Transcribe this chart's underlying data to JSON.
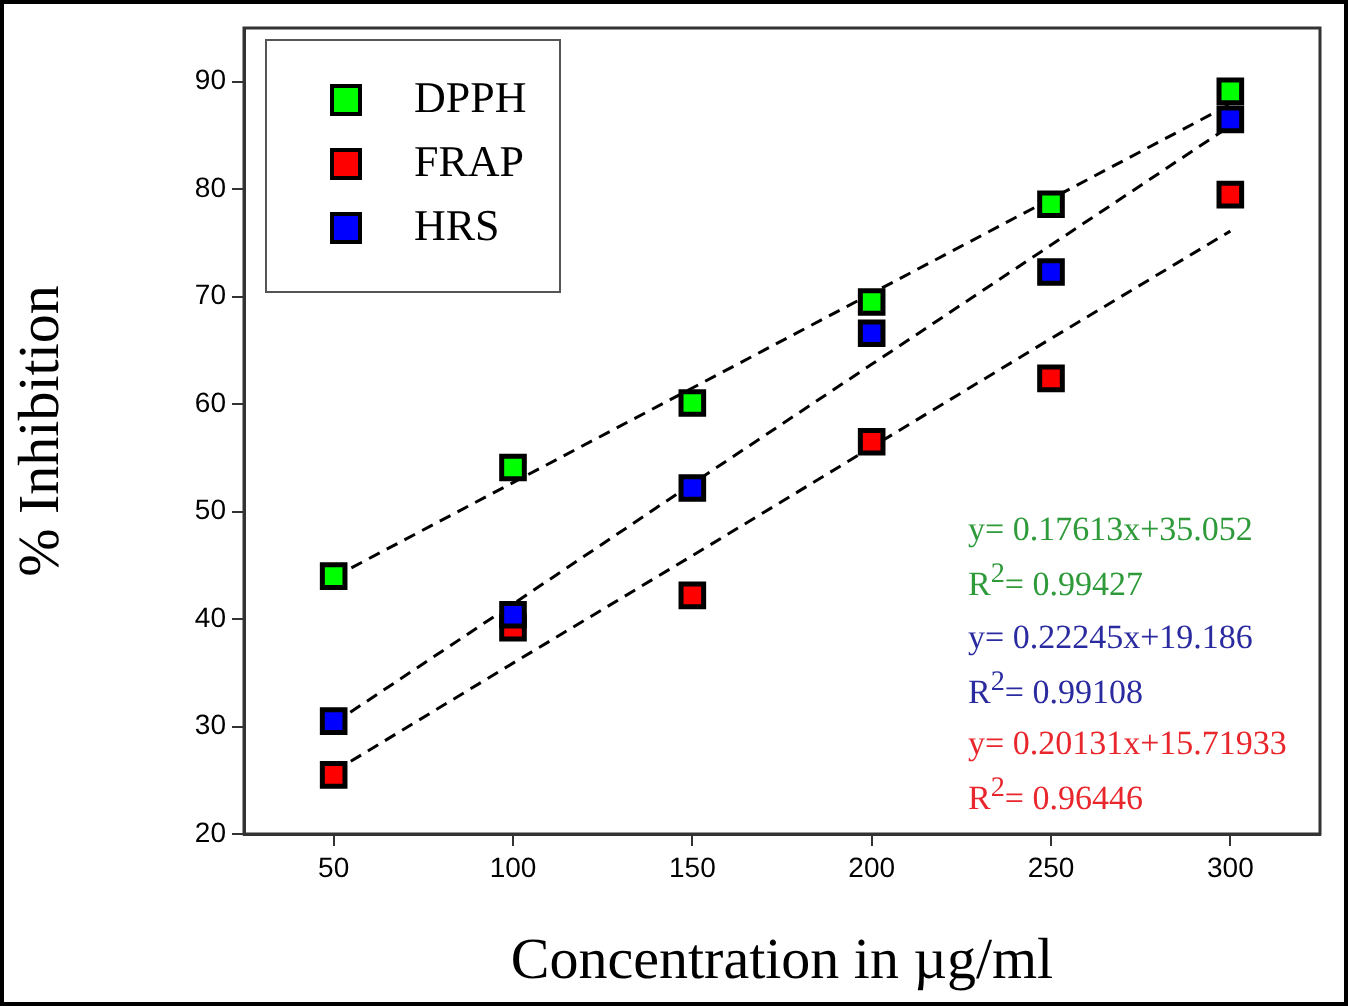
{
  "chart_data": {
    "type": "scatter",
    "xlabel": "Concentration in µg/ml",
    "ylabel": "% Inhibition",
    "x": [
      50,
      100,
      150,
      200,
      250,
      300
    ],
    "series": [
      {
        "name": "DPPH",
        "color": "#00ff00",
        "values": [
          44.0,
          54.1,
          60.1,
          69.5,
          78.6,
          89.1
        ]
      },
      {
        "name": "FRAP",
        "color": "#ff0000",
        "values": [
          25.5,
          39.2,
          42.2,
          56.5,
          62.4,
          79.5
        ]
      },
      {
        "name": "HRS",
        "color": "#0000ff",
        "values": [
          30.5,
          40.4,
          52.2,
          66.6,
          72.3,
          86.5
        ]
      },
      {
        "type": "line",
        "color": "#000000",
        "values": [
          43.9,
          52.7,
          61.5,
          70.3,
          79.1,
          87.9
        ],
        "line_style": "dashed",
        "marker": "none"
      },
      {
        "type": "line",
        "color": "#000000",
        "values": [
          30.3,
          41.4,
          52.6,
          63.7,
          74.8,
          85.9
        ],
        "line_style": "dashed",
        "marker": "none"
      },
      {
        "type": "line",
        "color": "#000000",
        "values": [
          25.8,
          35.9,
          45.9,
          56.0,
          66.1,
          76.1
        ],
        "line_style": "dashed",
        "marker": "none"
      }
    ],
    "xlim": [
      25,
      325
    ],
    "xticks": [
      50,
      100,
      150,
      200,
      250,
      300
    ],
    "ylim": [
      20,
      95
    ],
    "yticks": [
      20,
      30,
      40,
      50,
      60,
      70,
      80,
      90
    ],
    "marker": "square",
    "legend": "top left",
    "grid": false,
    "annotations": [
      "y= 0.17613x+35.052",
      "R$^{2}$= 0.99427",
      "y= 0.22245x+19.186",
      "R$^{2}$= 0.99108",
      "y= 0.20131x+15.71933",
      "R$^{2}$= 0.96446"
    ]
  }
}
